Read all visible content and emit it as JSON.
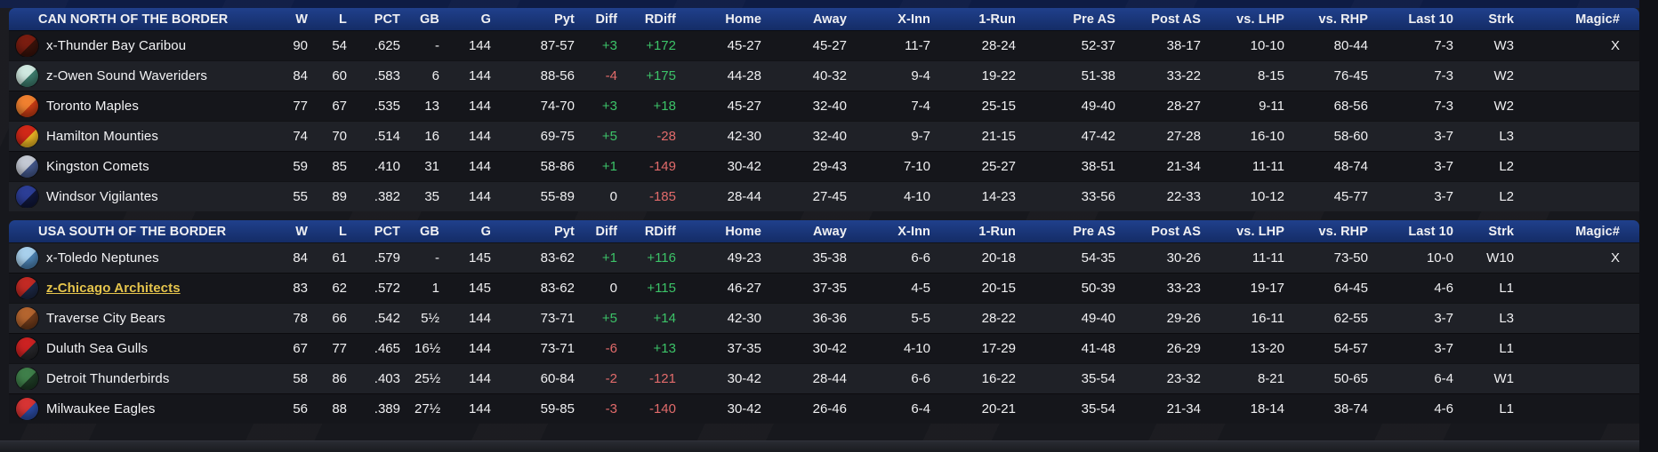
{
  "appearance": {
    "header_blue": "#20408c",
    "row_dark": "#15161b",
    "row_light": "#1f2127",
    "positive_color": "#3cc368",
    "negative_color": "#e26b6b",
    "user_team_color": "#e5c44c"
  },
  "standings": {
    "columns": [
      {
        "key": "w",
        "label": "W"
      },
      {
        "key": "l",
        "label": "L"
      },
      {
        "key": "pct",
        "label": "PCT"
      },
      {
        "key": "gb",
        "label": "GB"
      },
      {
        "key": "g",
        "label": "G"
      },
      {
        "key": "pyt",
        "label": "Pyt"
      },
      {
        "key": "diff",
        "label": "Diff"
      },
      {
        "key": "rdiff",
        "label": "RDiff"
      },
      {
        "key": "home",
        "label": "Home"
      },
      {
        "key": "away",
        "label": "Away"
      },
      {
        "key": "xinn",
        "label": "X-Inn"
      },
      {
        "key": "run1",
        "label": "1-Run"
      },
      {
        "key": "preas",
        "label": "Pre AS"
      },
      {
        "key": "postas",
        "label": "Post AS"
      },
      {
        "key": "lhp",
        "label": "vs. LHP"
      },
      {
        "key": "rhp",
        "label": "vs. RHP"
      },
      {
        "key": "last10",
        "label": "Last 10"
      },
      {
        "key": "strk",
        "label": "Strk"
      },
      {
        "key": "magic",
        "label": "Magic#"
      }
    ],
    "divisions": [
      {
        "title": "CAN NORTH OF THE BORDER",
        "start_shade": "dark",
        "teams": [
          {
            "name": "x-Thunder Bay Caribou",
            "slug": "thunder-bay-caribou",
            "logo_colors": [
              "#7a1d10",
              "#3a120a"
            ],
            "user_team": false,
            "cells": {
              "w": "90",
              "l": "54",
              "pct": ".625",
              "gb": "-",
              "g": "144",
              "pyt": "87-57",
              "diff": "+3",
              "rdiff": "+172",
              "home": "45-27",
              "away": "45-27",
              "xinn": "11-7",
              "run1": "28-24",
              "preas": "52-37",
              "postas": "38-17",
              "lhp": "10-10",
              "rhp": "80-44",
              "last10": "7-3",
              "strk": "W3",
              "magic": "X"
            }
          },
          {
            "name": "z-Owen Sound Waveriders",
            "slug": "owen-sound-waveriders",
            "logo_colors": [
              "#cfe8e0",
              "#3e7d6e"
            ],
            "user_team": false,
            "cells": {
              "w": "84",
              "l": "60",
              "pct": ".583",
              "gb": "6",
              "g": "144",
              "pyt": "88-56",
              "diff": "-4",
              "rdiff": "+175",
              "home": "44-28",
              "away": "40-32",
              "xinn": "9-4",
              "run1": "19-22",
              "preas": "51-38",
              "postas": "33-22",
              "lhp": "8-15",
              "rhp": "76-45",
              "last10": "7-3",
              "strk": "W2",
              "magic": ""
            }
          },
          {
            "name": "Toronto Maples",
            "slug": "toronto-maples",
            "logo_colors": [
              "#f08030",
              "#c93c14"
            ],
            "user_team": false,
            "cells": {
              "w": "77",
              "l": "67",
              "pct": ".535",
              "gb": "13",
              "g": "144",
              "pyt": "74-70",
              "diff": "+3",
              "rdiff": "+18",
              "home": "45-27",
              "away": "32-40",
              "xinn": "7-4",
              "run1": "25-15",
              "preas": "49-40",
              "postas": "28-27",
              "lhp": "9-11",
              "rhp": "68-56",
              "last10": "7-3",
              "strk": "W2",
              "magic": ""
            }
          },
          {
            "name": "Hamilton Mounties",
            "slug": "hamilton-mounties",
            "logo_colors": [
              "#d02818",
              "#e8b424"
            ],
            "user_team": false,
            "cells": {
              "w": "74",
              "l": "70",
              "pct": ".514",
              "gb": "16",
              "g": "144",
              "pyt": "69-75",
              "diff": "+5",
              "rdiff": "-28",
              "home": "42-30",
              "away": "32-40",
              "xinn": "9-7",
              "run1": "21-15",
              "preas": "47-42",
              "postas": "27-28",
              "lhp": "16-10",
              "rhp": "58-60",
              "last10": "3-7",
              "strk": "L3",
              "magic": ""
            }
          },
          {
            "name": "Kingston Comets",
            "slug": "kingston-comets",
            "logo_colors": [
              "#c4c9d4",
              "#44588c"
            ],
            "user_team": false,
            "cells": {
              "w": "59",
              "l": "85",
              "pct": ".410",
              "gb": "31",
              "g": "144",
              "pyt": "58-86",
              "diff": "+1",
              "rdiff": "-149",
              "home": "30-42",
              "away": "29-43",
              "xinn": "7-10",
              "run1": "25-27",
              "preas": "38-51",
              "postas": "21-34",
              "lhp": "11-11",
              "rhp": "48-74",
              "last10": "3-7",
              "strk": "L2",
              "magic": ""
            }
          },
          {
            "name": "Windsor Vigilantes",
            "slug": "windsor-vigilantes",
            "logo_colors": [
              "#2c3e96",
              "#10173a"
            ],
            "user_team": false,
            "cells": {
              "w": "55",
              "l": "89",
              "pct": ".382",
              "gb": "35",
              "g": "144",
              "pyt": "55-89",
              "diff": "0",
              "rdiff": "-185",
              "home": "28-44",
              "away": "27-45",
              "xinn": "4-10",
              "run1": "14-23",
              "preas": "33-56",
              "postas": "22-33",
              "lhp": "10-12",
              "rhp": "45-77",
              "last10": "3-7",
              "strk": "L2",
              "magic": ""
            }
          }
        ]
      },
      {
        "title": "USA SOUTH OF THE BORDER",
        "start_shade": "light",
        "teams": [
          {
            "name": "x-Toledo Neptunes",
            "slug": "toledo-neptunes",
            "logo_colors": [
              "#a8d0ec",
              "#4b80b0"
            ],
            "user_team": false,
            "cells": {
              "w": "84",
              "l": "61",
              "pct": ".579",
              "gb": "-",
              "g": "145",
              "pyt": "83-62",
              "diff": "+1",
              "rdiff": "+116",
              "home": "49-23",
              "away": "35-38",
              "xinn": "6-6",
              "run1": "20-18",
              "preas": "54-35",
              "postas": "30-26",
              "lhp": "11-11",
              "rhp": "73-50",
              "last10": "10-0",
              "strk": "W10",
              "magic": "X"
            }
          },
          {
            "name": "z-Chicago Architects",
            "slug": "chicago-architects",
            "logo_colors": [
              "#c22a24",
              "#1c2742"
            ],
            "user_team": true,
            "cells": {
              "w": "83",
              "l": "62",
              "pct": ".572",
              "gb": "1",
              "g": "145",
              "pyt": "83-62",
              "diff": "0",
              "rdiff": "+115",
              "home": "46-27",
              "away": "37-35",
              "xinn": "4-5",
              "run1": "20-15",
              "preas": "50-39",
              "postas": "33-23",
              "lhp": "19-17",
              "rhp": "64-45",
              "last10": "4-6",
              "strk": "L1",
              "magic": ""
            }
          },
          {
            "name": "Traverse City Bears",
            "slug": "traverse-city-bears",
            "logo_colors": [
              "#b4652f",
              "#6e3a1a"
            ],
            "user_team": false,
            "cells": {
              "w": "78",
              "l": "66",
              "pct": ".542",
              "gb": "5½",
              "g": "144",
              "pyt": "73-71",
              "diff": "+5",
              "rdiff": "+14",
              "home": "42-30",
              "away": "36-36",
              "xinn": "5-5",
              "run1": "28-22",
              "preas": "49-40",
              "postas": "29-26",
              "lhp": "16-11",
              "rhp": "62-55",
              "last10": "3-7",
              "strk": "L3",
              "magic": ""
            }
          },
          {
            "name": "Duluth Sea Gulls",
            "slug": "duluth-sea-gulls",
            "logo_colors": [
              "#cc2222",
              "#26262a"
            ],
            "user_team": false,
            "cells": {
              "w": "67",
              "l": "77",
              "pct": ".465",
              "gb": "16½",
              "g": "144",
              "pyt": "73-71",
              "diff": "-6",
              "rdiff": "+13",
              "home": "37-35",
              "away": "30-42",
              "xinn": "4-10",
              "run1": "17-29",
              "preas": "41-48",
              "postas": "26-29",
              "lhp": "13-20",
              "rhp": "54-57",
              "last10": "3-7",
              "strk": "L1",
              "magic": ""
            }
          },
          {
            "name": "Detroit Thunderbirds",
            "slug": "detroit-thunderbirds",
            "logo_colors": [
              "#3f7f4a",
              "#1d3a24"
            ],
            "user_team": false,
            "cells": {
              "w": "58",
              "l": "86",
              "pct": ".403",
              "gb": "25½",
              "g": "144",
              "pyt": "60-84",
              "diff": "-2",
              "rdiff": "-121",
              "home": "30-42",
              "away": "28-44",
              "xinn": "6-6",
              "run1": "16-22",
              "preas": "35-54",
              "postas": "23-32",
              "lhp": "8-21",
              "rhp": "50-65",
              "last10": "6-4",
              "strk": "W1",
              "magic": ""
            }
          },
          {
            "name": "Milwaukee Eagles",
            "slug": "milwaukee-eagles",
            "logo_colors": [
              "#d63434",
              "#2a4aa0"
            ],
            "user_team": false,
            "cells": {
              "w": "56",
              "l": "88",
              "pct": ".389",
              "gb": "27½",
              "g": "144",
              "pyt": "59-85",
              "diff": "-3",
              "rdiff": "-140",
              "home": "30-42",
              "away": "26-46",
              "xinn": "6-4",
              "run1": "20-21",
              "preas": "35-54",
              "postas": "21-34",
              "lhp": "18-14",
              "rhp": "38-74",
              "last10": "4-6",
              "strk": "L1",
              "magic": ""
            }
          }
        ]
      }
    ]
  }
}
